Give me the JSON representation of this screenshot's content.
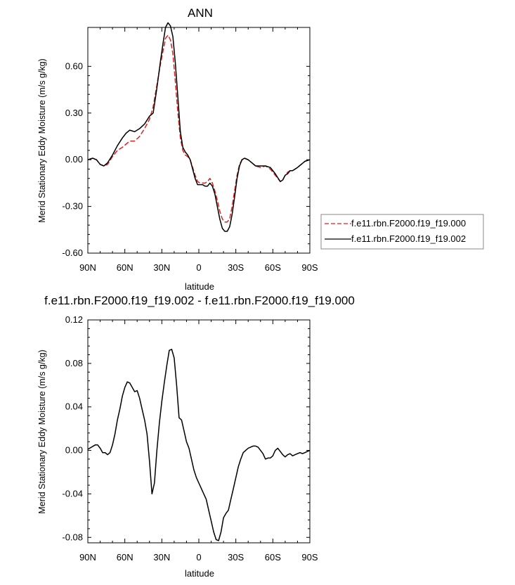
{
  "chart_data": [
    {
      "type": "line",
      "title": "ANN",
      "xlabel": "latitude",
      "ylabel": "Merid Stationary Eddy Moisture (m/s g/kg)",
      "xlim": [
        90,
        -90
      ],
      "ylim": [
        -0.6,
        0.85
      ],
      "x_tick_values": [
        90,
        60,
        30,
        0,
        -30,
        -60,
        -90
      ],
      "x_tick_labels": [
        "90N",
        "60N",
        "30N",
        "0",
        "30S",
        "60S",
        "90S"
      ],
      "y_tick_values": [
        -0.6,
        -0.3,
        0.0,
        0.3,
        0.6
      ],
      "y_tick_labels": [
        "-0.60",
        "-0.30",
        "0.00",
        "0.30",
        "0.60"
      ],
      "legend": "right",
      "series": [
        {
          "name": "f.e11.rbn.F2000.f19_f19.000",
          "color": "#e02020",
          "dash": "dashed",
          "x": [
            90,
            86,
            83,
            80,
            77,
            74,
            70,
            66,
            62,
            59,
            56,
            52,
            48,
            44,
            40,
            37,
            34,
            31,
            29,
            27,
            25,
            23,
            21,
            19,
            17,
            15,
            13,
            11,
            9,
            7,
            5,
            3,
            1,
            -1,
            -3,
            -5,
            -7,
            -9,
            -11,
            -13,
            -15,
            -17,
            -19,
            -21,
            -23,
            -25,
            -27,
            -29,
            -31,
            -33,
            -35,
            -37,
            -40,
            -43,
            -46,
            -50,
            -54,
            -58,
            -62,
            -66,
            -68,
            -70,
            -72,
            -74,
            -76,
            -78,
            -80,
            -83,
            -86,
            -90
          ],
          "y": [
            0.0,
            0.01,
            0.0,
            -0.03,
            -0.04,
            -0.03,
            0.02,
            0.06,
            0.08,
            0.1,
            0.12,
            0.12,
            0.15,
            0.2,
            0.26,
            0.34,
            0.48,
            0.62,
            0.7,
            0.78,
            0.8,
            0.77,
            0.68,
            0.5,
            0.3,
            0.14,
            0.06,
            0.03,
            0.02,
            0.0,
            -0.05,
            -0.1,
            -0.14,
            -0.15,
            -0.15,
            -0.15,
            -0.14,
            -0.12,
            -0.15,
            -0.2,
            -0.26,
            -0.33,
            -0.38,
            -0.4,
            -0.4,
            -0.38,
            -0.3,
            -0.2,
            -0.1,
            -0.03,
            0.0,
            0.01,
            0.0,
            -0.02,
            -0.04,
            -0.05,
            -0.04,
            -0.06,
            -0.1,
            -0.14,
            -0.13,
            -0.1,
            -0.08,
            -0.07,
            -0.07,
            -0.06,
            -0.05,
            -0.03,
            -0.01,
            0.0
          ]
        },
        {
          "name": "f.e11.rbn.F2000.f19_f19.002",
          "color": "#000000",
          "dash": "solid",
          "x": [
            90,
            86,
            83,
            80,
            77,
            74,
            70,
            66,
            62,
            59,
            56,
            52,
            48,
            44,
            40,
            37,
            34,
            31,
            29,
            27,
            25,
            23,
            21,
            19,
            17,
            15,
            13,
            11,
            9,
            7,
            5,
            3,
            1,
            -1,
            -3,
            -5,
            -7,
            -9,
            -11,
            -13,
            -15,
            -17,
            -19,
            -21,
            -23,
            -25,
            -27,
            -29,
            -31,
            -33,
            -35,
            -37,
            -40,
            -43,
            -46,
            -50,
            -54,
            -58,
            -62,
            -66,
            -68,
            -70,
            -72,
            -74,
            -76,
            -78,
            -80,
            -83,
            -86,
            -90
          ],
          "y": [
            0.0,
            0.01,
            0.0,
            -0.03,
            -0.04,
            -0.02,
            0.03,
            0.09,
            0.14,
            0.17,
            0.19,
            0.18,
            0.2,
            0.23,
            0.28,
            0.3,
            0.46,
            0.64,
            0.75,
            0.85,
            0.88,
            0.86,
            0.79,
            0.62,
            0.4,
            0.18,
            0.08,
            0.05,
            0.03,
            0.0,
            -0.06,
            -0.12,
            -0.16,
            -0.16,
            -0.16,
            -0.17,
            -0.17,
            -0.15,
            -0.17,
            -0.22,
            -0.3,
            -0.38,
            -0.44,
            -0.46,
            -0.46,
            -0.43,
            -0.35,
            -0.24,
            -0.12,
            -0.04,
            0.0,
            0.01,
            0.0,
            -0.02,
            -0.04,
            -0.04,
            -0.04,
            -0.05,
            -0.09,
            -0.14,
            -0.13,
            -0.1,
            -0.09,
            -0.07,
            -0.07,
            -0.06,
            -0.05,
            -0.03,
            -0.01,
            0.0
          ]
        }
      ]
    },
    {
      "type": "line",
      "title": "f.e11.rbn.F2000.f19_f19.002 - f.e11.rbn.F2000.f19_f19.000",
      "xlabel": "latitude",
      "ylabel": "Merid Stationary Eddy Moisture (m/s g/kg)",
      "xlim": [
        90,
        -90
      ],
      "ylim": [
        -0.085,
        0.12
      ],
      "x_tick_values": [
        90,
        60,
        30,
        0,
        -30,
        -60,
        -90
      ],
      "x_tick_labels": [
        "90N",
        "60N",
        "30N",
        "0",
        "30S",
        "60S",
        "90S"
      ],
      "y_tick_values": [
        -0.08,
        -0.04,
        0.0,
        0.04,
        0.08,
        0.12
      ],
      "y_tick_labels": [
        "-0.08",
        "-0.04",
        "0.00",
        "0.04",
        "0.08",
        "0.12"
      ],
      "series": [
        {
          "color": "#000000",
          "dash": "solid",
          "x": [
            90,
            87,
            84,
            82,
            80,
            78,
            76,
            74,
            72,
            70,
            68,
            66,
            64,
            62,
            60,
            58,
            56,
            54,
            52,
            50,
            48,
            46,
            44,
            42,
            40,
            38,
            36,
            34,
            32,
            30,
            28,
            26,
            24,
            22,
            20,
            18,
            16,
            14,
            12,
            10,
            8,
            6,
            4,
            2,
            0,
            -2,
            -4,
            -6,
            -8,
            -10,
            -12,
            -14,
            -16,
            -18,
            -20,
            -22,
            -24,
            -26,
            -28,
            -30,
            -32,
            -34,
            -36,
            -38,
            -40,
            -42,
            -44,
            -46,
            -48,
            -50,
            -52,
            -54,
            -56,
            -58,
            -60,
            -62,
            -64,
            -66,
            -68,
            -70,
            -72,
            -74,
            -76,
            -78,
            -80,
            -82,
            -84,
            -86,
            -88,
            -90
          ],
          "y": [
            0.001,
            0.003,
            0.005,
            0.005,
            0.002,
            -0.002,
            -0.002,
            -0.004,
            -0.002,
            0.005,
            0.015,
            0.028,
            0.038,
            0.05,
            0.058,
            0.063,
            0.062,
            0.058,
            0.054,
            0.055,
            0.048,
            0.038,
            0.028,
            0.015,
            -0.01,
            -0.04,
            -0.03,
            0.0,
            0.025,
            0.045,
            0.062,
            0.078,
            0.092,
            0.093,
            0.085,
            0.06,
            0.03,
            0.028,
            0.018,
            0.008,
            0.002,
            -0.008,
            -0.018,
            -0.025,
            -0.03,
            -0.035,
            -0.04,
            -0.045,
            -0.055,
            -0.065,
            -0.075,
            -0.082,
            -0.083,
            -0.075,
            -0.062,
            -0.058,
            -0.055,
            -0.045,
            -0.035,
            -0.025,
            -0.015,
            -0.008,
            -0.002,
            0.0,
            0.002,
            0.003,
            0.004,
            0.004,
            0.003,
            0.0,
            -0.003,
            -0.008,
            -0.007,
            -0.007,
            -0.005,
            0.0,
            0.002,
            -0.001,
            -0.004,
            -0.006,
            -0.004,
            -0.003,
            -0.005,
            -0.004,
            -0.003,
            -0.002,
            -0.003,
            -0.002,
            -0.001,
            0.0
          ]
        }
      ]
    }
  ]
}
